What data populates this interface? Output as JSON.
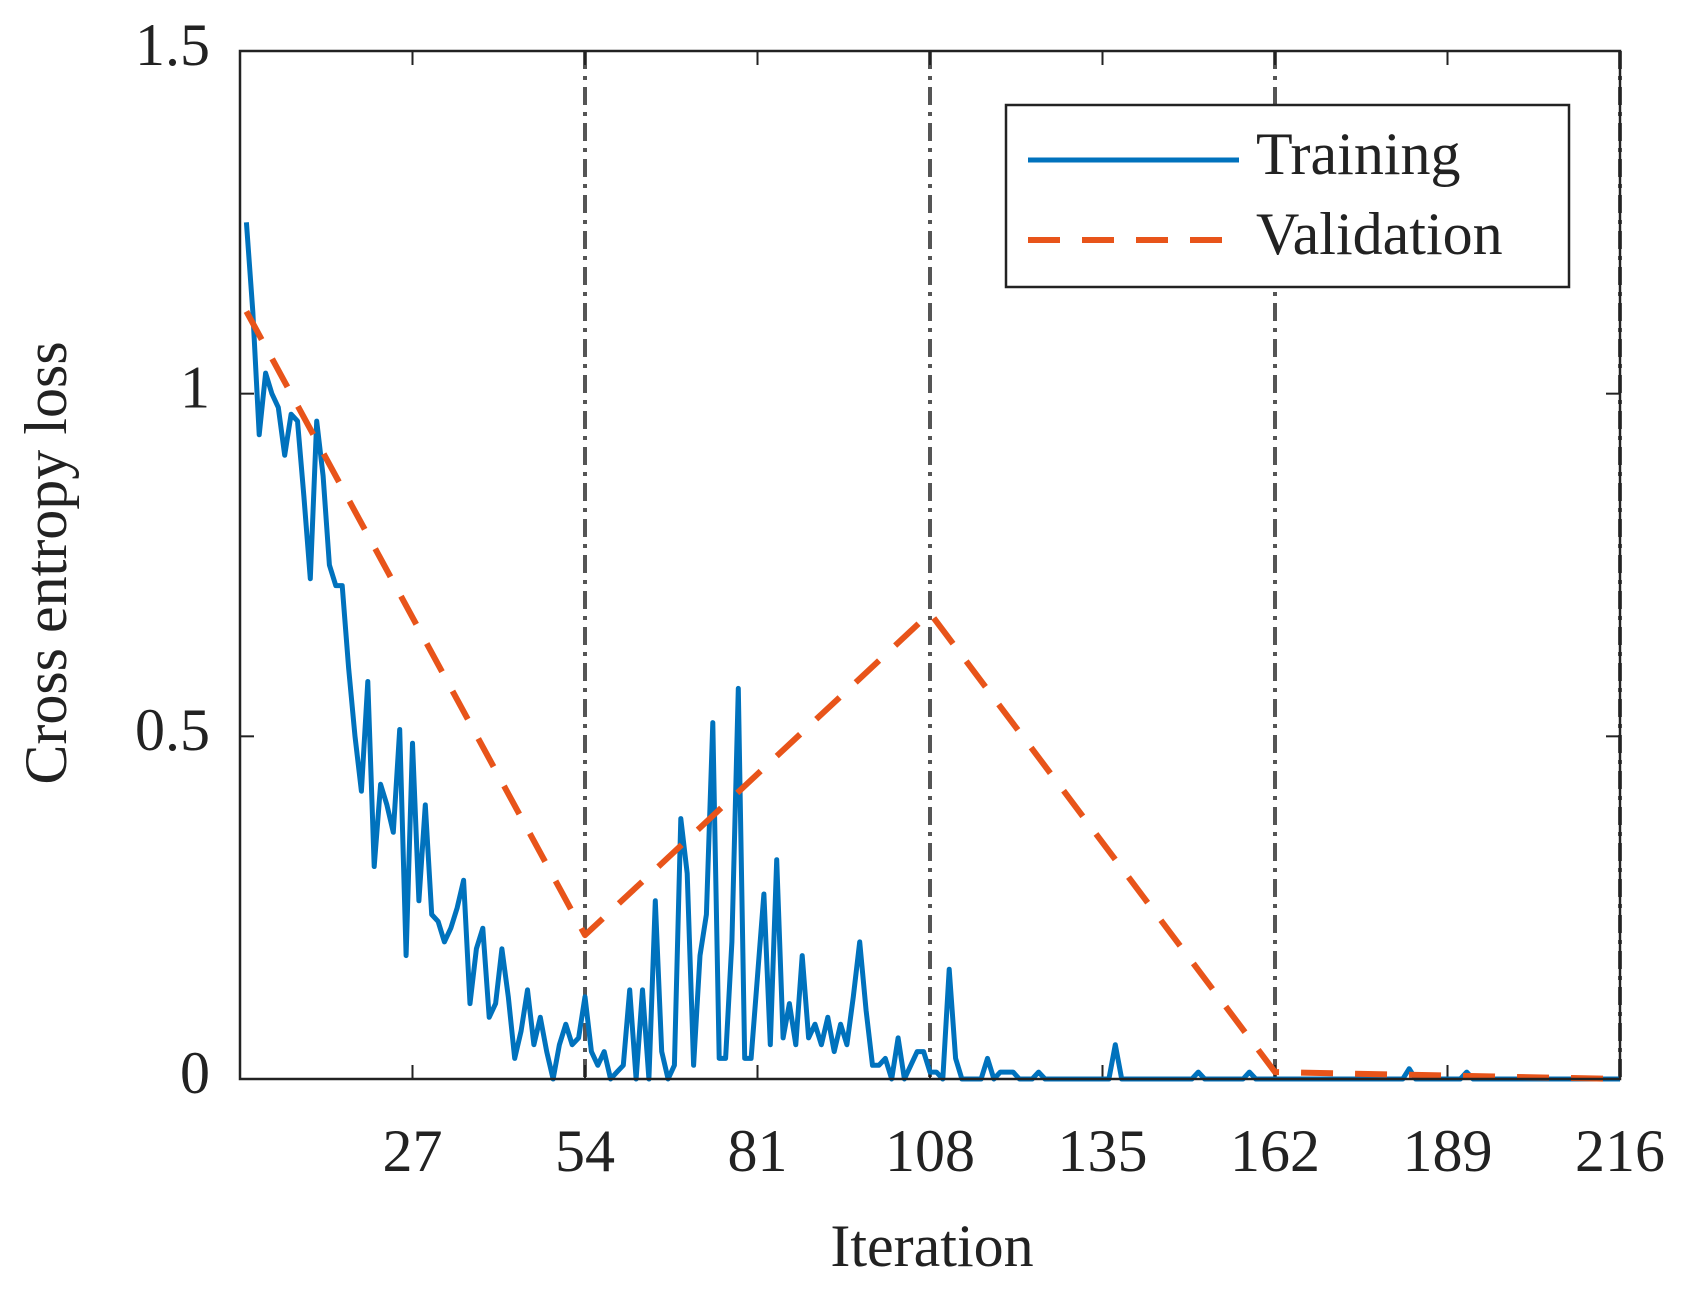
{
  "chart_data": {
    "type": "line",
    "xlabel": "Iteration",
    "ylabel": "Cross entropy loss",
    "xlim": [
      0,
      216
    ],
    "xticks": [
      27,
      54,
      81,
      108,
      135,
      162,
      189,
      216
    ],
    "ylim": [
      0,
      1.5
    ],
    "yticks": [
      0,
      0.5,
      1,
      1.5
    ],
    "vlines": [
      54,
      108,
      162,
      216
    ],
    "vline_color": "#555555",
    "legend": "upper right",
    "series": [
      {
        "name": "Training",
        "color": "#0072bd",
        "style": "solid",
        "x": [
          1,
          2,
          3,
          4,
          5,
          6,
          7,
          8,
          9,
          10,
          11,
          12,
          13,
          14,
          15,
          16,
          17,
          18,
          19,
          20,
          21,
          22,
          23,
          24,
          25,
          26,
          27,
          28,
          29,
          30,
          31,
          32,
          33,
          34,
          35,
          36,
          37,
          38,
          39,
          40,
          41,
          42,
          43,
          44,
          45,
          46,
          47,
          48,
          49,
          50,
          51,
          52,
          53,
          54,
          55,
          56,
          57,
          58,
          59,
          60,
          61,
          62,
          63,
          64,
          65,
          66,
          67,
          68,
          69,
          70,
          71,
          72,
          73,
          74,
          75,
          76,
          77,
          78,
          79,
          80,
          81,
          82,
          83,
          84,
          85,
          86,
          87,
          88,
          89,
          90,
          91,
          92,
          93,
          94,
          95,
          96,
          97,
          98,
          99,
          100,
          101,
          102,
          103,
          104,
          105,
          106,
          107,
          108,
          109,
          110,
          111,
          112,
          113,
          114,
          115,
          116,
          117,
          118,
          119,
          120,
          121,
          122,
          123,
          124,
          125,
          126,
          127,
          128,
          129,
          130,
          131,
          132,
          133,
          134,
          135,
          136,
          137,
          138,
          139,
          140,
          141,
          142,
          143,
          144,
          145,
          146,
          147,
          148,
          149,
          150,
          151,
          152,
          153,
          154,
          155,
          156,
          157,
          158,
          159,
          160,
          161,
          162,
          163,
          164,
          165,
          166,
          167,
          168,
          169,
          170,
          171,
          172,
          173,
          174,
          175,
          176,
          177,
          178,
          179,
          180,
          181,
          182,
          183,
          184,
          185,
          186,
          187,
          188,
          189,
          190,
          191,
          192,
          193,
          194,
          195,
          196,
          197,
          198,
          199,
          200,
          201,
          202,
          203,
          204,
          205,
          206,
          207,
          208,
          209,
          210,
          211,
          212,
          213,
          214,
          215,
          216
        ],
        "values": [
          1.25,
          1.12,
          0.94,
          1.03,
          1.0,
          0.98,
          0.91,
          0.97,
          0.96,
          0.85,
          0.73,
          0.96,
          0.88,
          0.75,
          0.72,
          0.72,
          0.6,
          0.5,
          0.42,
          0.58,
          0.31,
          0.43,
          0.4,
          0.36,
          0.51,
          0.18,
          0.49,
          0.26,
          0.4,
          0.24,
          0.23,
          0.2,
          0.22,
          0.25,
          0.29,
          0.11,
          0.19,
          0.22,
          0.09,
          0.11,
          0.19,
          0.12,
          0.03,
          0.07,
          0.13,
          0.05,
          0.09,
          0.04,
          0,
          0.05,
          0.08,
          0.05,
          0.06,
          0.12,
          0.04,
          0.02,
          0.04,
          0,
          0.01,
          0.02,
          0.13,
          0,
          0.13,
          0,
          0.26,
          0.04,
          0,
          0.02,
          0.38,
          0.3,
          0.02,
          0.18,
          0.24,
          0.52,
          0.03,
          0.03,
          0.2,
          0.57,
          0.03,
          0.03,
          0.15,
          0.27,
          0.05,
          0.32,
          0.06,
          0.11,
          0.05,
          0.18,
          0.06,
          0.08,
          0.05,
          0.09,
          0.04,
          0.08,
          0.05,
          0.12,
          0.2,
          0.1,
          0.02,
          0.02,
          0.03,
          0,
          0.06,
          0,
          0.02,
          0.04,
          0.04,
          0.01,
          0.01,
          0,
          0.16,
          0.03,
          0,
          0,
          0,
          0,
          0.03,
          0,
          0.01,
          0.01,
          0.01,
          0,
          0,
          0,
          0.01,
          0,
          0,
          0,
          0,
          0,
          0,
          0,
          0,
          0,
          0,
          0,
          0.05,
          0,
          0,
          0,
          0,
          0,
          0,
          0,
          0,
          0,
          0,
          0,
          0,
          0.01,
          0,
          0,
          0,
          0,
          0,
          0,
          0,
          0.01,
          0,
          0,
          0,
          0,
          0,
          0,
          0,
          0,
          0,
          0,
          0,
          0,
          0,
          0,
          0,
          0,
          0,
          0,
          0,
          0,
          0,
          0,
          0,
          0,
          0.015,
          0,
          0,
          0,
          0,
          0,
          0,
          0,
          0,
          0.01,
          0,
          0,
          0,
          0,
          0,
          0,
          0,
          0,
          0,
          0,
          0,
          0,
          0,
          0,
          0,
          0,
          0,
          0,
          0,
          0,
          0,
          0,
          0,
          0
        ]
      },
      {
        "name": "Validation",
        "color": "#e8541a",
        "style": "dashed",
        "x": [
          1,
          54,
          108,
          162,
          216
        ],
        "values": [
          1.12,
          0.21,
          0.68,
          0.01,
          0
        ]
      }
    ]
  }
}
